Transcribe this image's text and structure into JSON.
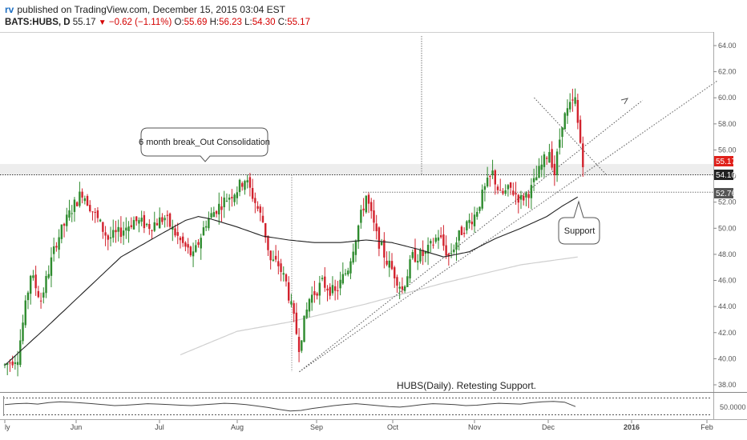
{
  "header": {
    "brand": "rv",
    "published": "published on TradingView.com, December 15, 2015 03:04 EST",
    "symbol": "BATS:HUBS, D",
    "last": "55.17",
    "change_arrow": "▼",
    "change": "−0.62 (−1.11%)",
    "open_label": "O:",
    "open": "55.69",
    "high_label": "H:",
    "high": "56.23",
    "low_label": "L:",
    "low": "54.30",
    "close_label": "C:",
    "close": "55.17"
  },
  "annotations": {
    "callout_text": "6 month break_Out Consolidation",
    "support_text": "Support",
    "study_title": "HUBS(Daily). Retesting Support."
  },
  "price_tags": {
    "last": "55.17",
    "resistance": "54.10",
    "support": "52.76"
  },
  "colors": {
    "up": "#2e8b2e",
    "down": "#d2222d",
    "ma50": "#222222",
    "ma200": "#cfcfcf",
    "last_tag": "#e0201a",
    "level_tag": "#333333"
  },
  "chart_data": {
    "type": "candlestick",
    "symbol": "BATS:HUBS",
    "interval": "D",
    "ylim": [
      37,
      65
    ],
    "y_ticks": [
      38,
      40,
      42,
      44,
      46,
      48,
      50,
      52,
      54,
      56,
      58,
      60,
      62,
      64
    ],
    "x_tick_labels": [
      "ly",
      "Jun",
      "Jul",
      "Aug",
      "Sep",
      "Oct",
      "Nov",
      "Dec",
      "2016",
      "Feb"
    ],
    "levels": {
      "resistance": 54.1,
      "support": 52.76,
      "last": 55.17
    },
    "anchors": [
      {
        "i": 0,
        "p": 39.5
      },
      {
        "i": 5,
        "p": 40.2
      },
      {
        "i": 10,
        "p": 46.5
      },
      {
        "i": 14,
        "p": 44.5
      },
      {
        "i": 20,
        "p": 49.0
      },
      {
        "i": 26,
        "p": 51.5
      },
      {
        "i": 30,
        "p": 52.8
      },
      {
        "i": 35,
        "p": 51.0
      },
      {
        "i": 40,
        "p": 49.2
      },
      {
        "i": 44,
        "p": 49.6
      },
      {
        "i": 50,
        "p": 50.6
      },
      {
        "i": 56,
        "p": 50.2
      },
      {
        "i": 62,
        "p": 50.8
      },
      {
        "i": 68,
        "p": 49.0
      },
      {
        "i": 73,
        "p": 47.8
      },
      {
        "i": 78,
        "p": 50.5
      },
      {
        "i": 82,
        "p": 51.5
      },
      {
        "i": 86,
        "p": 52.3
      },
      {
        "i": 90,
        "p": 53.0
      },
      {
        "i": 93,
        "p": 53.8
      },
      {
        "i": 96,
        "p": 52.5
      },
      {
        "i": 100,
        "p": 50.5
      },
      {
        "i": 103,
        "p": 47.5
      },
      {
        "i": 106,
        "p": 47.2
      },
      {
        "i": 109,
        "p": 45.8
      },
      {
        "i": 112,
        "p": 43.0
      },
      {
        "i": 114,
        "p": 41.0
      },
      {
        "i": 118,
        "p": 44.6
      },
      {
        "i": 123,
        "p": 45.8
      },
      {
        "i": 128,
        "p": 45.0
      },
      {
        "i": 133,
        "p": 47.0
      },
      {
        "i": 137,
        "p": 50.2
      },
      {
        "i": 140,
        "p": 52.5
      },
      {
        "i": 144,
        "p": 49.4
      },
      {
        "i": 148,
        "p": 47.5
      },
      {
        "i": 151,
        "p": 46.5
      },
      {
        "i": 154,
        "p": 45.3
      },
      {
        "i": 158,
        "p": 47.8
      },
      {
        "i": 163,
        "p": 48.0
      },
      {
        "i": 168,
        "p": 49.5
      },
      {
        "i": 172,
        "p": 47.8
      },
      {
        "i": 177,
        "p": 49.8
      },
      {
        "i": 182,
        "p": 51.0
      },
      {
        "i": 186,
        "p": 53.0
      },
      {
        "i": 189,
        "p": 54.2
      },
      {
        "i": 192,
        "p": 52.5
      },
      {
        "i": 196,
        "p": 53.0
      },
      {
        "i": 200,
        "p": 52.2
      },
      {
        "i": 204,
        "p": 53.0
      },
      {
        "i": 208,
        "p": 54.8
      },
      {
        "i": 211,
        "p": 56.0
      },
      {
        "i": 213,
        "p": 54.2
      },
      {
        "i": 216,
        "p": 58.2
      },
      {
        "i": 219,
        "p": 59.3
      },
      {
        "i": 221,
        "p": 59.8
      },
      {
        "i": 222,
        "p": 58.0
      },
      {
        "i": 224,
        "p": 55.17
      }
    ],
    "ma50": [
      {
        "i": 0,
        "p": 39.5
      },
      {
        "i": 15,
        "p": 42.2
      },
      {
        "i": 30,
        "p": 45.0
      },
      {
        "i": 45,
        "p": 47.8
      },
      {
        "i": 60,
        "p": 49.5
      },
      {
        "i": 70,
        "p": 50.6
      },
      {
        "i": 75,
        "p": 50.9
      },
      {
        "i": 80,
        "p": 50.7
      },
      {
        "i": 90,
        "p": 50.1
      },
      {
        "i": 100,
        "p": 49.4
      },
      {
        "i": 110,
        "p": 49.1
      },
      {
        "i": 120,
        "p": 48.9
      },
      {
        "i": 130,
        "p": 48.9
      },
      {
        "i": 140,
        "p": 49.1
      },
      {
        "i": 150,
        "p": 48.9
      },
      {
        "i": 160,
        "p": 48.4
      },
      {
        "i": 170,
        "p": 47.8
      },
      {
        "i": 180,
        "p": 48.2
      },
      {
        "i": 190,
        "p": 49.2
      },
      {
        "i": 200,
        "p": 50.0
      },
      {
        "i": 210,
        "p": 50.9
      },
      {
        "i": 216,
        "p": 51.7
      },
      {
        "i": 222,
        "p": 52.4
      }
    ],
    "ma200": [
      {
        "i": 68,
        "p": 40.3
      },
      {
        "i": 90,
        "p": 42.1
      },
      {
        "i": 110,
        "p": 42.8
      },
      {
        "i": 140,
        "p": 44.2
      },
      {
        "i": 170,
        "p": 45.8
      },
      {
        "i": 200,
        "p": 47.2
      },
      {
        "i": 222,
        "p": 47.8
      }
    ],
    "trendlines": [
      {
        "from": {
          "i": 93,
          "p": 39.0
        },
        "to": {
          "i": 227,
          "p": 61.3
        }
      },
      {
        "from": {
          "i": 93,
          "p": 39.0
        },
        "to": {
          "i": 198,
          "p": 59.8
        }
      },
      {
        "from": {
          "i": 184,
          "p": 60.0
        },
        "to": {
          "i": 184,
          "p": 54.1
        }
      }
    ],
    "oscillator": {
      "label": "50.0000",
      "values": [
        0.55,
        0.6,
        0.62,
        0.58,
        0.66,
        0.7,
        0.68,
        0.64,
        0.6,
        0.55,
        0.5,
        0.52,
        0.56,
        0.6,
        0.58,
        0.55,
        0.52,
        0.5,
        0.54,
        0.58,
        0.62,
        0.6,
        0.55,
        0.48,
        0.4,
        0.3,
        0.22,
        0.25,
        0.35,
        0.42,
        0.5,
        0.56,
        0.6,
        0.55,
        0.5,
        0.45,
        0.42,
        0.48,
        0.55,
        0.6,
        0.58,
        0.55,
        0.5,
        0.52,
        0.58,
        0.62,
        0.6,
        0.58,
        0.65,
        0.7,
        0.72,
        0.68,
        0.45
      ]
    }
  }
}
